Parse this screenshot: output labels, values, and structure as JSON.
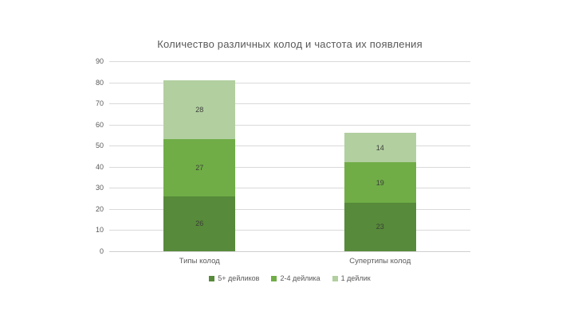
{
  "chart_data": {
    "type": "bar",
    "stacked": true,
    "title": "Количество различных колод и частота их появления",
    "categories": [
      "Типы колод",
      "Супертипы колод"
    ],
    "series": [
      {
        "name": "5+ дейликов",
        "values": [
          26,
          23
        ],
        "color": "#578a3a"
      },
      {
        "name": "2-4 дейлика",
        "values": [
          27,
          19
        ],
        "color": "#70ad47"
      },
      {
        "name": "1 дейлик",
        "values": [
          28,
          14
        ],
        "color": "#b2cfa0"
      }
    ],
    "totals": [
      81,
      56
    ],
    "ylim": [
      0,
      90
    ],
    "ytick_step": 10,
    "grid": true,
    "legend_position": "bottom",
    "value_labels": true,
    "colors": {
      "gridline": "#d9d9d9",
      "axis_text": "#595959",
      "title_text": "#595959",
      "value_label_text": "#3b3f38",
      "background": "#ffffff"
    }
  }
}
